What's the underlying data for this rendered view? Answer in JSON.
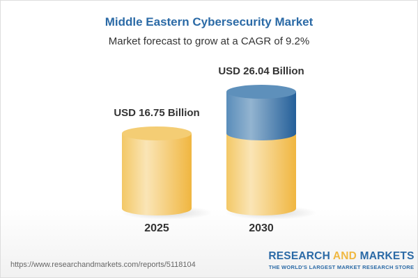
{
  "chart_data": {
    "type": "bar",
    "style": "3d-cylinder",
    "title": "Middle Eastern Cybersecurity Market",
    "subtitle": "Market forecast to grow at a CAGR of 9.2%",
    "categories": [
      "2025",
      "2030"
    ],
    "values": [
      16.75,
      26.04
    ],
    "data_labels": [
      "USD 16.75 Billion",
      "USD 26.04 Billion"
    ],
    "unit": "USD Billion",
    "colors": {
      "base": "#f2c35a",
      "growth": "#3f7bb0"
    }
  },
  "footer": {
    "url": "https://www.researchandmarkets.com/reports/5118104",
    "logo_line1_a": "RESEARCH ",
    "logo_line1_b": "AND",
    "logo_line1_c": " MARKETS",
    "logo_line2": "THE WORLD'S LARGEST MARKET RESEARCH STORE"
  }
}
